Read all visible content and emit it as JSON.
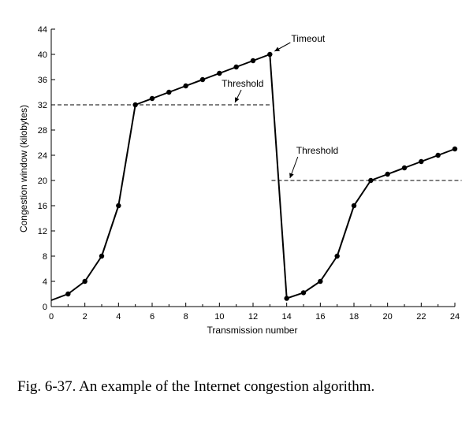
{
  "chart_data": {
    "type": "line",
    "xlabel": "Transmission number",
    "ylabel": "Congestion window (kilobytes)",
    "xlim": [
      0,
      24
    ],
    "ylim": [
      0,
      44
    ],
    "xticks": [
      0,
      2,
      4,
      6,
      8,
      10,
      12,
      14,
      16,
      18,
      20,
      22,
      24
    ],
    "yticks": [
      0,
      4,
      8,
      12,
      16,
      20,
      24,
      28,
      32,
      36,
      40,
      44
    ],
    "grid": false,
    "series": [
      {
        "x": [
          1,
          2,
          3,
          4,
          5,
          6,
          7,
          8,
          9,
          10,
          11,
          12,
          13,
          14,
          15,
          16,
          17,
          18,
          19,
          20,
          21,
          22,
          23,
          24
        ],
        "values": [
          2,
          4,
          8,
          16,
          32,
          33,
          34,
          35,
          36,
          37,
          38,
          39,
          40,
          1.3,
          2.2,
          4,
          8,
          16,
          20,
          21,
          22,
          23,
          24,
          25
        ]
      }
    ],
    "line_start": [
      0,
      1
    ],
    "thresholds": [
      {
        "y": 32,
        "x_range": [
          0,
          13
        ],
        "label": "Threshold"
      },
      {
        "y": 20,
        "x_range": [
          13.1,
          24.4
        ],
        "label": "Threshold"
      }
    ],
    "annotations": [
      {
        "label": "Timeout",
        "x": 13,
        "y": 40
      }
    ]
  },
  "caption": "Fig. 6-37. An example of the Internet congestion algorithm."
}
